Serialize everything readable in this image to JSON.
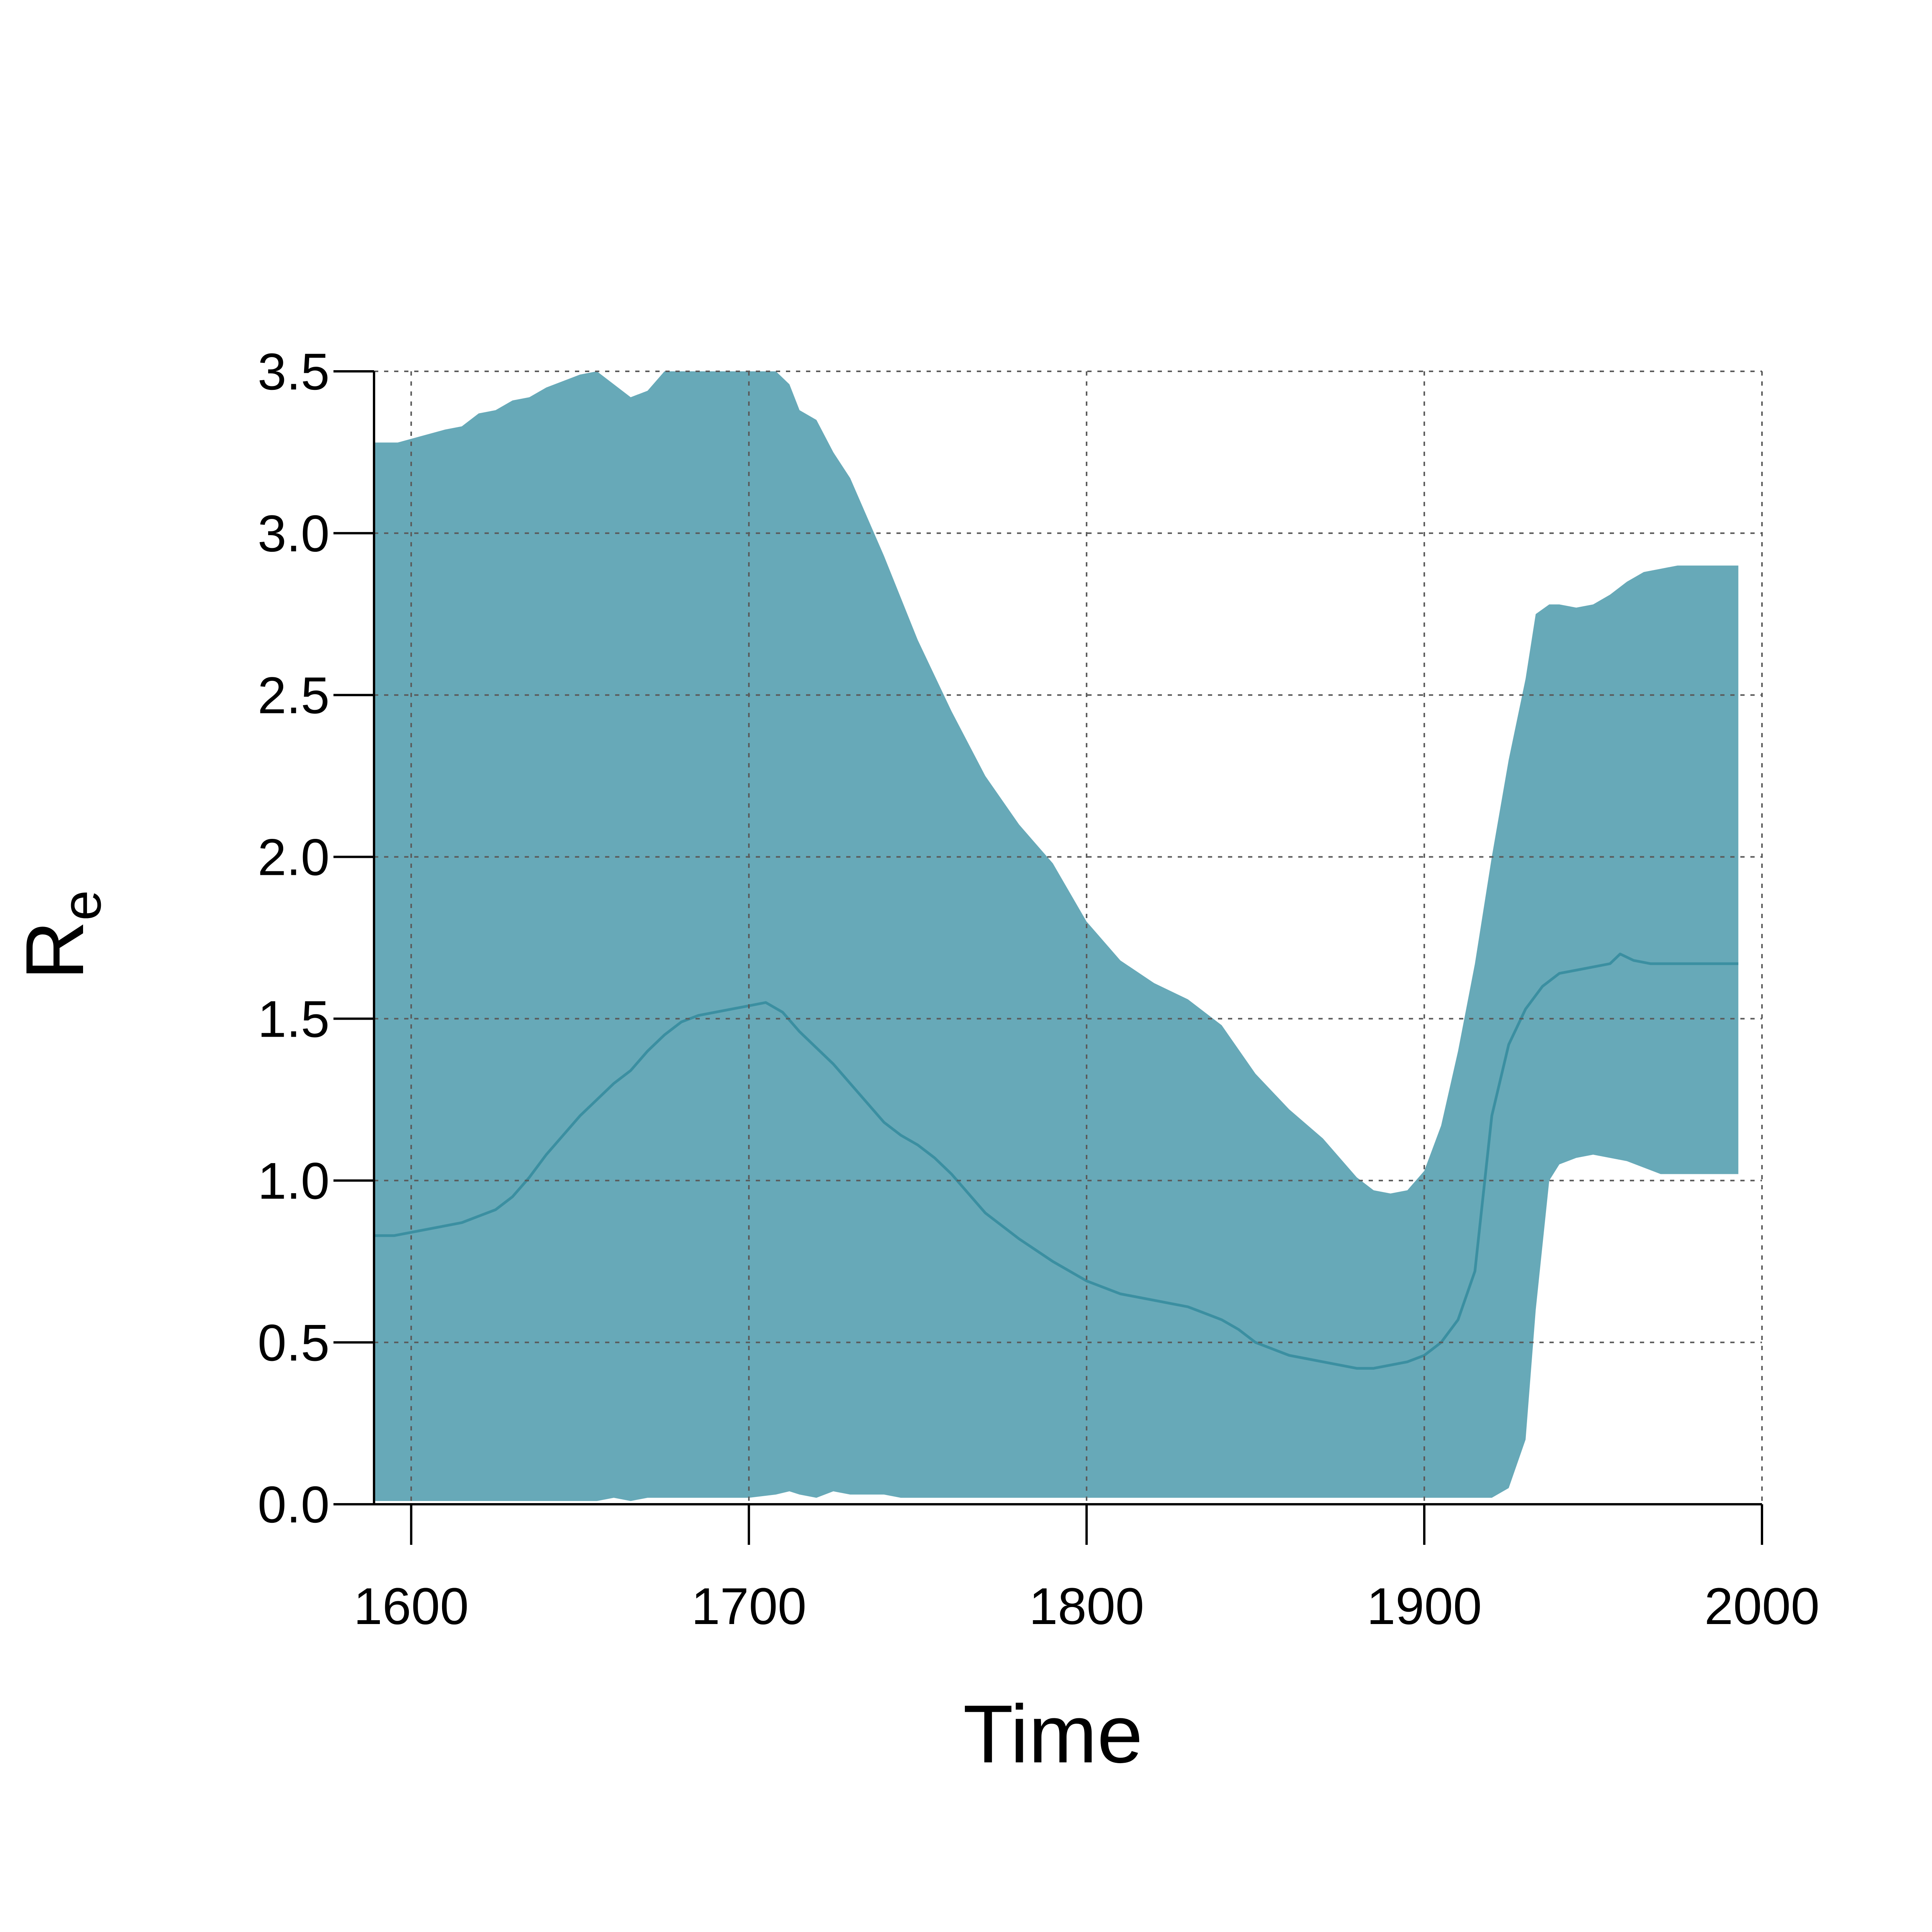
{
  "chart_data": {
    "type": "area",
    "xlabel": "Time",
    "ylabel": "R",
    "ylabel_subscript": "e",
    "xlim": [
      1589,
      2000
    ],
    "ylim": [
      0,
      3.5
    ],
    "xticks": [
      1600,
      1700,
      1800,
      1900,
      2000
    ],
    "xtick_labels": [
      "1600",
      "1700",
      "1800",
      "1900",
      "2000"
    ],
    "yticks": [
      0,
      0.5,
      1,
      1.5,
      2,
      2.5,
      3,
      3.5
    ],
    "ytick_labels": [
      "0.0",
      "0.5",
      "1.0",
      "1.5",
      "2.0",
      "2.5",
      "3.0",
      "3.5"
    ],
    "grid": true,
    "colors": {
      "band": "#67a9b8",
      "line": "#3b8fa1"
    },
    "band": {
      "x": [
        1589,
        1596,
        1603,
        1610,
        1615,
        1620,
        1625,
        1630,
        1635,
        1640,
        1645,
        1650,
        1655,
        1660,
        1665,
        1670,
        1675,
        1680,
        1690,
        1700,
        1708,
        1712,
        1715,
        1720,
        1725,
        1730,
        1735,
        1740,
        1745,
        1750,
        1760,
        1770,
        1780,
        1790,
        1800,
        1810,
        1820,
        1830,
        1840,
        1850,
        1860,
        1870,
        1880,
        1885,
        1890,
        1895,
        1900,
        1905,
        1910,
        1915,
        1920,
        1925,
        1930,
        1933,
        1937,
        1940,
        1945,
        1950,
        1955,
        1960,
        1965,
        1970,
        1975,
        1993
      ],
      "upper": [
        3.28,
        3.28,
        3.3,
        3.32,
        3.33,
        3.37,
        3.38,
        3.41,
        3.42,
        3.45,
        3.47,
        3.49,
        3.5,
        3.46,
        3.42,
        3.44,
        3.5,
        3.5,
        3.5,
        3.5,
        3.5,
        3.46,
        3.38,
        3.35,
        3.25,
        3.17,
        3.05,
        2.93,
        2.8,
        2.67,
        2.45,
        2.25,
        2.1,
        1.98,
        1.8,
        1.68,
        1.61,
        1.56,
        1.48,
        1.33,
        1.22,
        1.13,
        1.01,
        0.97,
        0.96,
        0.97,
        1.03,
        1.17,
        1.4,
        1.67,
        2.0,
        2.3,
        2.55,
        2.75,
        2.78,
        2.78,
        2.77,
        2.78,
        2.81,
        2.85,
        2.88,
        2.89,
        2.9,
        2.9
      ],
      "lower": [
        0.01,
        0.01,
        0.01,
        0.01,
        0.01,
        0.01,
        0.01,
        0.01,
        0.01,
        0.01,
        0.01,
        0.01,
        0.01,
        0.02,
        0.01,
        0.02,
        0.02,
        0.02,
        0.02,
        0.02,
        0.03,
        0.04,
        0.03,
        0.02,
        0.04,
        0.03,
        0.03,
        0.03,
        0.02,
        0.02,
        0.02,
        0.02,
        0.02,
        0.02,
        0.02,
        0.02,
        0.02,
        0.02,
        0.02,
        0.02,
        0.02,
        0.02,
        0.02,
        0.02,
        0.02,
        0.02,
        0.02,
        0.02,
        0.02,
        0.02,
        0.02,
        0.05,
        0.2,
        0.6,
        1.0,
        1.05,
        1.07,
        1.08,
        1.07,
        1.06,
        1.04,
        1.02,
        1.02,
        1.02
      ]
    },
    "series": [
      {
        "x": [
          1589,
          1595,
          1600,
          1605,
          1610,
          1615,
          1620,
          1625,
          1630,
          1635,
          1640,
          1645,
          1650,
          1655,
          1660,
          1665,
          1670,
          1675,
          1680,
          1685,
          1690,
          1695,
          1700,
          1705,
          1710,
          1715,
          1720,
          1725,
          1730,
          1735,
          1740,
          1745,
          1750,
          1755,
          1760,
          1765,
          1770,
          1775,
          1780,
          1790,
          1800,
          1810,
          1820,
          1830,
          1835,
          1840,
          1845,
          1850,
          1855,
          1860,
          1865,
          1870,
          1875,
          1880,
          1885,
          1890,
          1895,
          1900,
          1905,
          1910,
          1915,
          1920,
          1925,
          1930,
          1935,
          1940,
          1945,
          1950,
          1955,
          1958,
          1962,
          1967,
          1993
        ],
        "values": [
          0.83,
          0.83,
          0.84,
          0.85,
          0.86,
          0.87,
          0.89,
          0.91,
          0.95,
          1.01,
          1.08,
          1.14,
          1.2,
          1.25,
          1.3,
          1.34,
          1.4,
          1.45,
          1.49,
          1.51,
          1.52,
          1.53,
          1.54,
          1.55,
          1.52,
          1.46,
          1.41,
          1.36,
          1.3,
          1.24,
          1.18,
          1.14,
          1.11,
          1.07,
          1.02,
          0.96,
          0.9,
          0.86,
          0.82,
          0.75,
          0.69,
          0.65,
          0.63,
          0.61,
          0.59,
          0.57,
          0.54,
          0.5,
          0.48,
          0.46,
          0.45,
          0.44,
          0.43,
          0.42,
          0.42,
          0.43,
          0.44,
          0.46,
          0.5,
          0.57,
          0.72,
          1.2,
          1.42,
          1.53,
          1.6,
          1.64,
          1.65,
          1.66,
          1.67,
          1.7,
          1.68,
          1.67,
          1.67
        ]
      }
    ]
  }
}
